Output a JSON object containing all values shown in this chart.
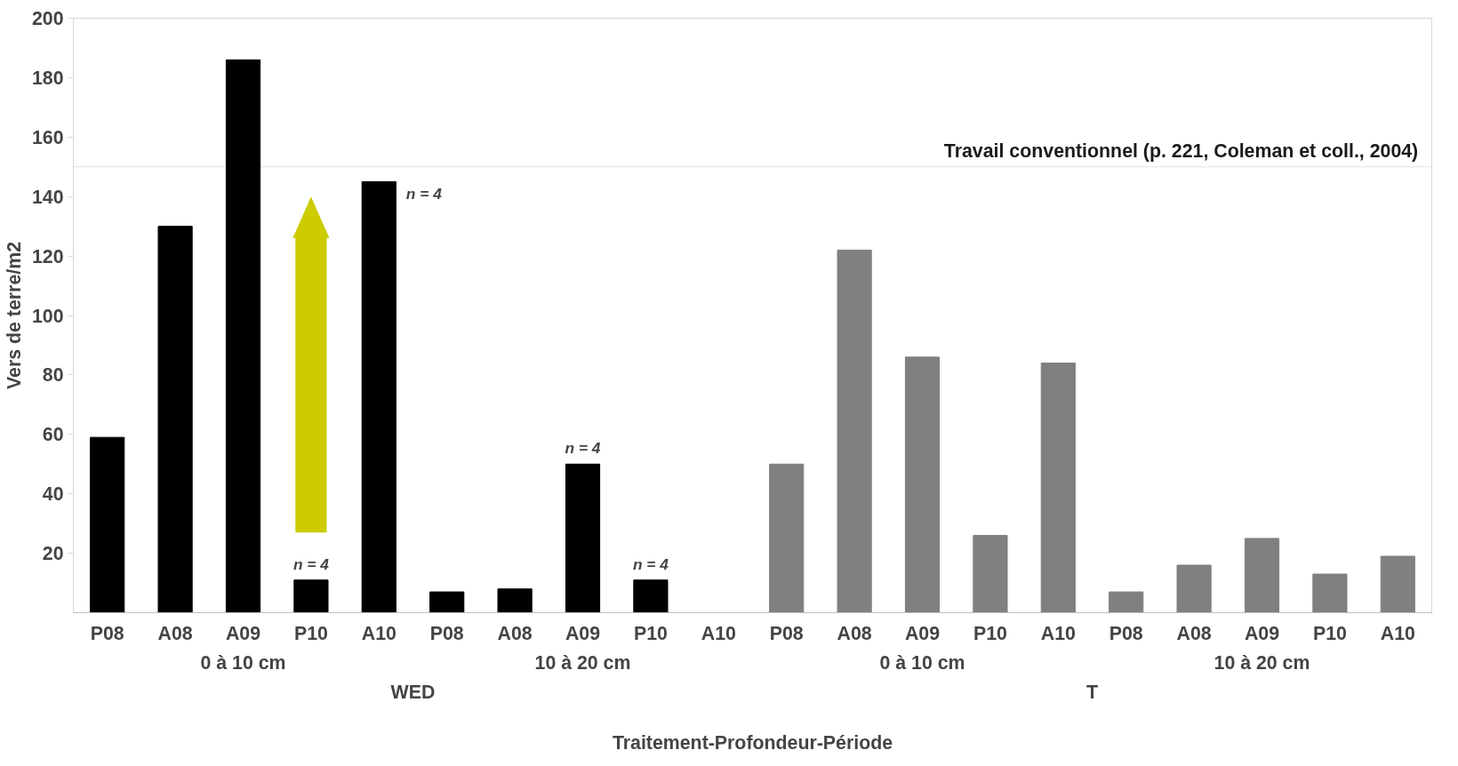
{
  "chart_data": {
    "type": "bar",
    "xlabel": "Traitement-Profondeur-Période",
    "ylabel": "Vers de terre/m2",
    "categories": [
      "P08",
      "A08",
      "A09",
      "P10",
      "A10",
      "P08",
      "A08",
      "A09",
      "P10",
      "A10",
      "P08",
      "A08",
      "A09",
      "P10",
      "A10",
      "P08",
      "A08",
      "A09",
      "P10",
      "A10"
    ],
    "values": [
      59,
      130,
      186,
      11,
      145,
      7,
      8,
      50,
      11,
      null,
      50,
      122,
      86,
      26,
      84,
      7,
      16,
      25,
      13,
      19
    ],
    "colors": [
      "#000000",
      "#000000",
      "#000000",
      "#000000",
      "#000000",
      "#000000",
      "#000000",
      "#000000",
      "#000000",
      "#000000",
      "#808080",
      "#808080",
      "#808080",
      "#808080",
      "#808080",
      "#808080",
      "#808080",
      "#808080",
      "#808080",
      "#808080"
    ],
    "ylim": [
      0,
      200
    ],
    "yticks": [
      20,
      40,
      60,
      80,
      100,
      120,
      140,
      160,
      180,
      200
    ],
    "grid": false,
    "ref_lines": [
      {
        "axis": "y",
        "value": 150,
        "label": "Travail conventionnel (p. 221, Coleman et coll., 2004)",
        "color": "#e0e0e0"
      }
    ],
    "annotations": [
      "n = 4",
      "n = 4",
      "n = 4",
      "n = 4",
      "0 à 10 cm",
      "10 à 20 cm",
      "0 à 10 cm",
      "10 à 20 cm",
      "WED",
      "T"
    ]
  }
}
